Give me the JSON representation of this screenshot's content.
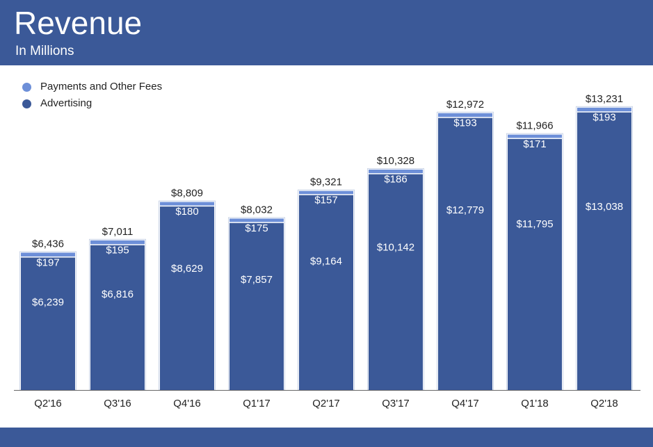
{
  "header": {
    "title": "Revenue",
    "subtitle": "In Millions"
  },
  "colors": {
    "brand": "#3b5998",
    "advertising": "#3b5998",
    "payments": "#6d8fd8"
  },
  "chart_data": {
    "type": "bar",
    "stacked": true,
    "title": "Revenue",
    "subtitle": "In Millions",
    "categories": [
      "Q2'16",
      "Q3'16",
      "Q4'16",
      "Q1'17",
      "Q2'17",
      "Q3'17",
      "Q4'17",
      "Q1'18",
      "Q2'18"
    ],
    "series": [
      {
        "name": "Advertising",
        "values": [
          6239,
          6816,
          8629,
          7857,
          9164,
          10142,
          12779,
          11795,
          13038
        ],
        "labels": [
          "$6,239",
          "$6,816",
          "$8,629",
          "$7,857",
          "$9,164",
          "$10,142",
          "$12,779",
          "$11,795",
          "$13,038"
        ]
      },
      {
        "name": "Payments and Other Fees",
        "values": [
          197,
          195,
          180,
          175,
          157,
          186,
          193,
          171,
          193
        ],
        "labels": [
          "$197",
          "$195",
          "$180",
          "$175",
          "$157",
          "$186",
          "$193",
          "$171",
          "$193"
        ]
      }
    ],
    "totals": [
      6436,
      7011,
      8809,
      8032,
      9321,
      10328,
      12972,
      11966,
      13231
    ],
    "total_labels": [
      "$6,436",
      "$7,011",
      "$8,809",
      "$8,032",
      "$9,321",
      "$10,328",
      "$12,972",
      "$11,966",
      "$13,231"
    ],
    "legend_position": "top-left",
    "grid": false
  }
}
